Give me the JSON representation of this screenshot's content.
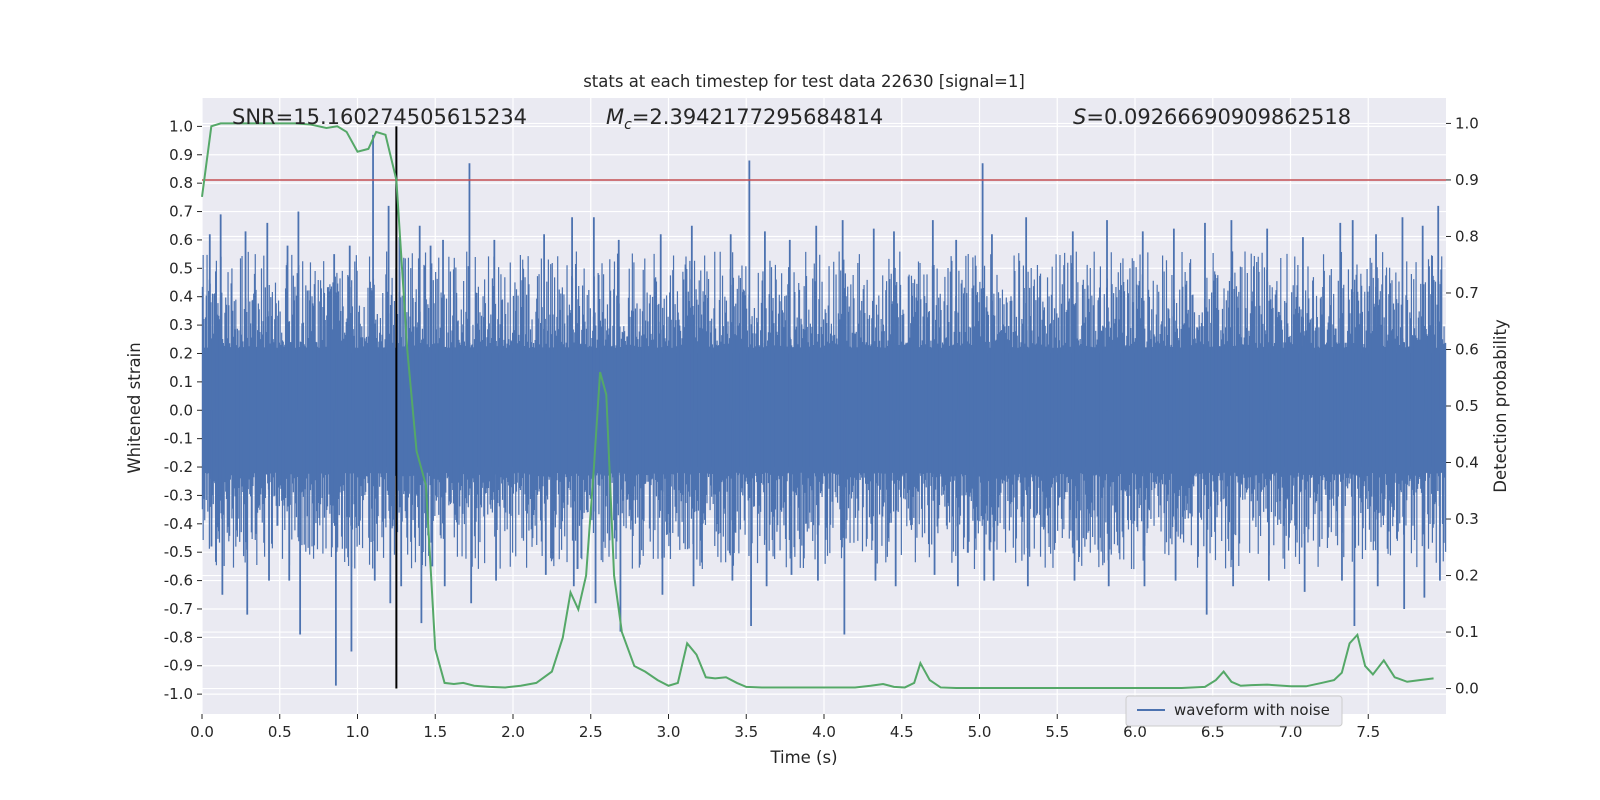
{
  "chart_data": {
    "type": "line",
    "title": "stats at each timestep for test data 22630 [signal=1]",
    "xlabel": "Time (s)",
    "ylabel": "Whitened strain",
    "y2label": "Detection probability",
    "xlim": [
      0.0,
      8.0
    ],
    "ylim": [
      -1.07,
      1.1
    ],
    "y2lim": [
      -0.045,
      1.045
    ],
    "x_ticks": [
      "0.0",
      "0.5",
      "1.0",
      "1.5",
      "2.0",
      "2.5",
      "3.0",
      "3.5",
      "4.0",
      "4.5",
      "5.0",
      "5.5",
      "6.0",
      "6.5",
      "7.0",
      "7.5"
    ],
    "y_ticks": [
      "1.0",
      "0.9",
      "0.8",
      "0.7",
      "0.6",
      "0.5",
      "0.4",
      "0.3",
      "0.2",
      "0.1",
      "0.0",
      "-0.1",
      "-0.2",
      "-0.3",
      "-0.4",
      "-0.5",
      "-0.6",
      "-0.7",
      "-0.8",
      "-0.9",
      "-1.0"
    ],
    "y2_ticks": [
      "1.0",
      "0.9",
      "0.8",
      "0.7",
      "0.6",
      "0.5",
      "0.4",
      "0.3",
      "0.2",
      "0.1",
      "0.0"
    ],
    "grid": true,
    "legend_position": "bottom-right",
    "annotations": {
      "snr": "SNR=15.160274505615234",
      "mc_symbol": "M",
      "mc_subscript": "c",
      "mc_value": "=2.3942177295684814",
      "s_symbol": "S",
      "s_value": "=0.09266690909862518"
    },
    "threshold_probability": 0.9,
    "merger_time": 1.25,
    "merger_line_range": [
      -0.98,
      1.0
    ],
    "series": [
      {
        "name": "waveform with noise",
        "axis": "left",
        "color": "#4c72b0",
        "band_envelope": 0.2,
        "x": [
          0.05,
          0.12,
          0.28,
          0.42,
          0.55,
          0.62,
          0.85,
          0.95,
          1.1,
          1.2,
          1.27,
          1.4,
          1.47,
          1.55,
          1.72,
          1.88,
          2.2,
          2.38,
          2.52,
          2.68,
          2.95,
          3.15,
          3.4,
          3.52,
          3.62,
          3.78,
          3.95,
          4.12,
          4.32,
          4.45,
          4.7,
          4.85,
          5.02,
          5.08,
          5.3,
          5.6,
          5.82,
          6.05,
          6.25,
          6.45,
          6.62,
          6.85,
          7.08,
          7.32,
          7.4,
          7.55,
          7.72,
          7.85,
          7.95
        ],
        "y_max": [
          0.62,
          0.69,
          0.63,
          0.66,
          0.58,
          0.7,
          0.55,
          0.58,
          0.97,
          0.72,
          0.61,
          0.65,
          0.58,
          0.6,
          0.87,
          0.6,
          0.62,
          0.68,
          0.68,
          0.6,
          0.62,
          0.65,
          0.62,
          0.88,
          0.63,
          0.6,
          0.65,
          0.67,
          0.64,
          0.63,
          0.67,
          0.6,
          0.87,
          0.62,
          0.68,
          0.63,
          0.67,
          0.63,
          0.64,
          0.66,
          0.67,
          0.64,
          0.61,
          0.66,
          0.67,
          0.62,
          0.68,
          0.65,
          0.72
        ],
        "y_min": [
          -0.48,
          -0.65,
          -0.72,
          -0.6,
          -0.6,
          -0.79,
          -0.97,
          -0.85,
          -0.6,
          -0.68,
          -0.62,
          -0.75,
          -0.55,
          -0.62,
          -0.68,
          -0.6,
          -0.58,
          -0.62,
          -0.68,
          -0.78,
          -0.65,
          -0.62,
          -0.6,
          -0.76,
          -0.62,
          -0.58,
          -0.6,
          -0.79,
          -0.6,
          -0.62,
          -0.58,
          -0.62,
          -0.6,
          -0.6,
          -0.62,
          -0.6,
          -0.62,
          -0.62,
          -0.6,
          -0.72,
          -0.62,
          -0.6,
          -0.64,
          -0.6,
          -0.76,
          -0.62,
          -0.7,
          -0.66,
          -0.6
        ]
      },
      {
        "name": "",
        "axis": "right",
        "color": "#55a868",
        "x": [
          0.0,
          0.06,
          0.12,
          0.2,
          0.3,
          0.45,
          0.6,
          0.7,
          0.8,
          0.87,
          0.93,
          1.0,
          1.07,
          1.12,
          1.18,
          1.25,
          1.32,
          1.38,
          1.44,
          1.5,
          1.56,
          1.62,
          1.68,
          1.75,
          1.85,
          1.95,
          2.05,
          2.15,
          2.25,
          2.32,
          2.37,
          2.42,
          2.47,
          2.52,
          2.56,
          2.6,
          2.65,
          2.7,
          2.78,
          2.85,
          2.93,
          3.0,
          3.06,
          3.12,
          3.18,
          3.24,
          3.3,
          3.37,
          3.44,
          3.5,
          3.6,
          3.8,
          4.0,
          4.2,
          4.3,
          4.38,
          4.45,
          4.52,
          4.58,
          4.62,
          4.68,
          4.75,
          4.85,
          5.0,
          5.2,
          5.5,
          5.8,
          6.1,
          6.3,
          6.45,
          6.52,
          6.57,
          6.62,
          6.68,
          6.75,
          6.85,
          7.0,
          7.1,
          7.2,
          7.28,
          7.33,
          7.38,
          7.43,
          7.48,
          7.53,
          7.6,
          7.67,
          7.75,
          7.83,
          7.92
        ],
        "y": [
          0.87,
          0.995,
          1.0,
          1.0,
          1.0,
          1.0,
          1.0,
          0.998,
          0.992,
          0.995,
          0.985,
          0.95,
          0.955,
          0.985,
          0.98,
          0.9,
          0.6,
          0.42,
          0.36,
          0.07,
          0.01,
          0.008,
          0.01,
          0.005,
          0.003,
          0.002,
          0.005,
          0.01,
          0.03,
          0.09,
          0.17,
          0.14,
          0.2,
          0.39,
          0.56,
          0.52,
          0.2,
          0.1,
          0.04,
          0.03,
          0.015,
          0.005,
          0.01,
          0.08,
          0.06,
          0.02,
          0.018,
          0.02,
          0.01,
          0.003,
          0.002,
          0.002,
          0.002,
          0.002,
          0.005,
          0.008,
          0.003,
          0.002,
          0.01,
          0.045,
          0.015,
          0.002,
          0.001,
          0.001,
          0.001,
          0.001,
          0.001,
          0.001,
          0.001,
          0.003,
          0.015,
          0.03,
          0.012,
          0.005,
          0.006,
          0.007,
          0.004,
          0.004,
          0.01,
          0.015,
          0.028,
          0.08,
          0.095,
          0.04,
          0.025,
          0.05,
          0.02,
          0.012,
          0.015,
          0.018
        ]
      }
    ]
  }
}
